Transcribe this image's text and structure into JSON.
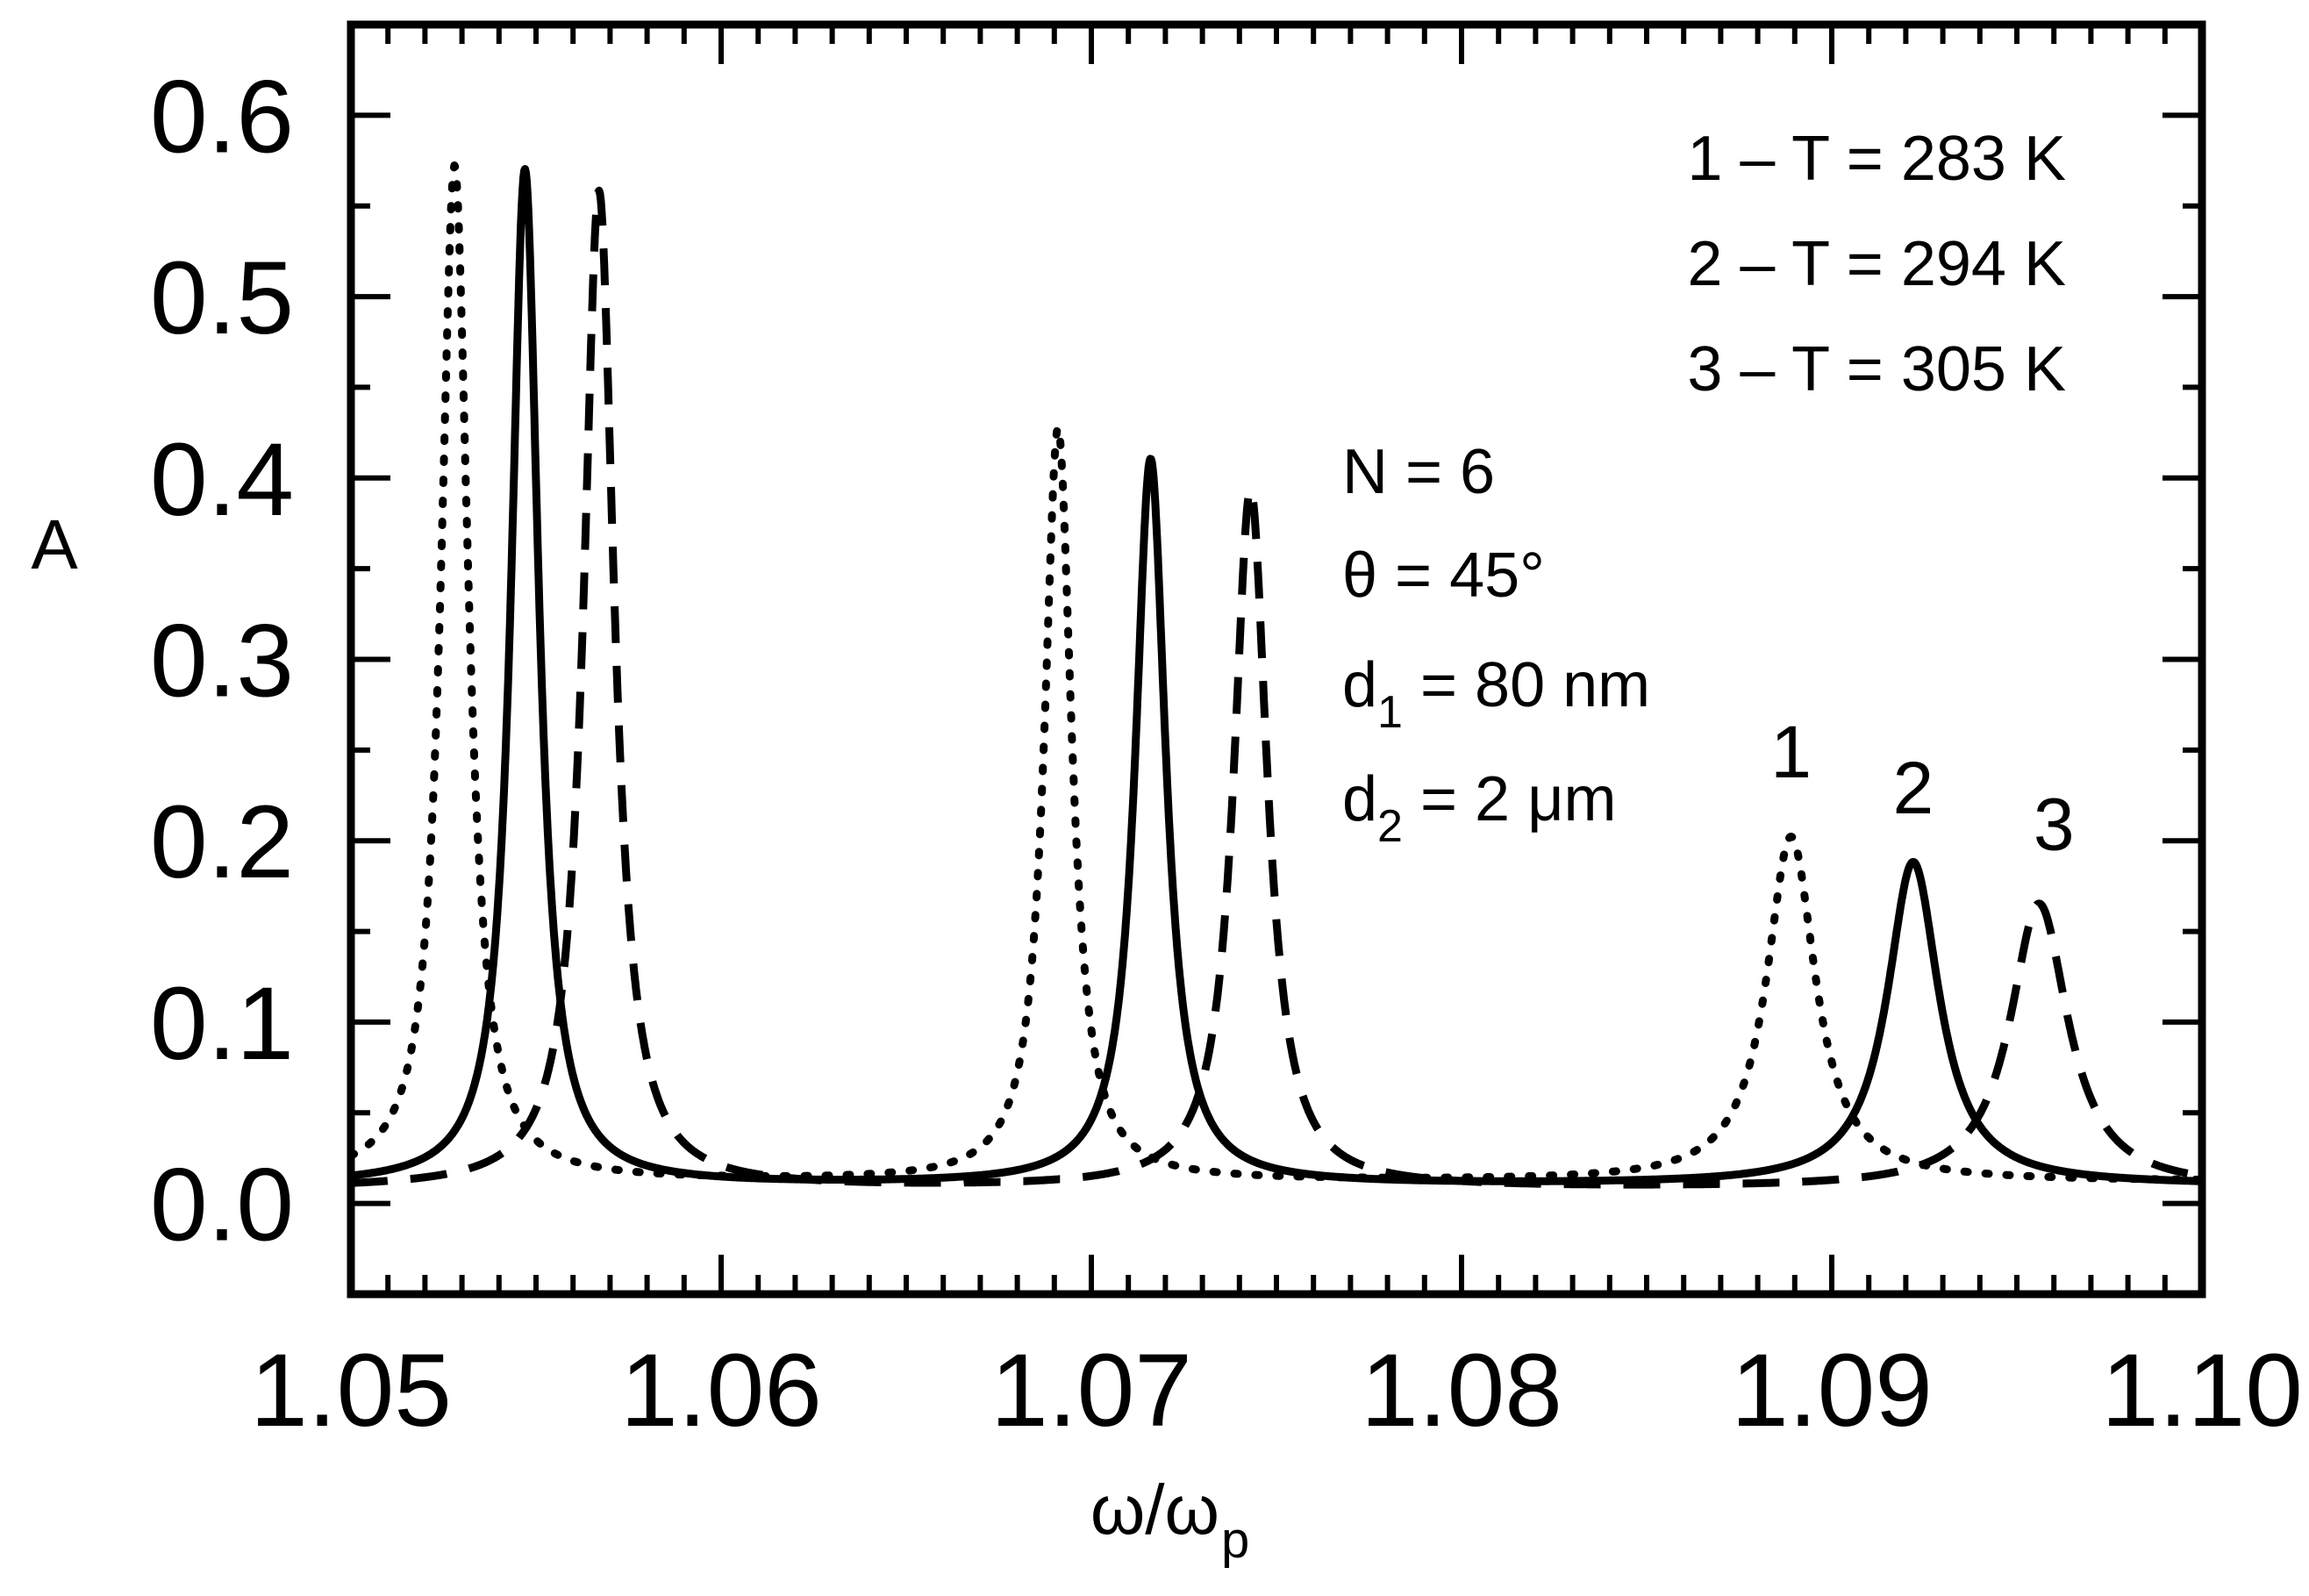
{
  "chart_data": {
    "type": "line",
    "title": "",
    "xlabel": "ω/ω",
    "xlabel_sub": "p",
    "ylabel": "A",
    "xlim": [
      1.05,
      1.1
    ],
    "ylim": [
      -0.05,
      0.65
    ],
    "xticks": [
      "1.05",
      "1.06",
      "1.07",
      "1.08",
      "1.09",
      "1.10"
    ],
    "xtick_values": [
      1.05,
      1.06,
      1.07,
      1.08,
      1.09,
      1.1
    ],
    "yticks": [
      "0.0",
      "0.1",
      "0.2",
      "0.3",
      "0.4",
      "0.5",
      "0.6"
    ],
    "ytick_values": [
      0.0,
      0.1,
      0.2,
      0.3,
      0.4,
      0.5,
      0.6
    ],
    "grid": false,
    "legend": {
      "placement": "top-right",
      "entries": [
        "1 – T = 283 K",
        "2 – T = 294 K",
        "3 – T = 305 K"
      ]
    },
    "parameters": {
      "n": "N = 6",
      "theta": "θ = 45°",
      "d1_left": "d",
      "d1_sub": "1",
      "d1_right": " = 80 nm",
      "d2_left": "d",
      "d2_sub": "2",
      "d2_right": " = 2 μm"
    },
    "curve_labels": [
      {
        "text": "1",
        "x": 1.0889,
        "y": 0.235
      },
      {
        "text": "2",
        "x": 1.0922,
        "y": 0.215
      },
      {
        "text": "3",
        "x": 1.096,
        "y": 0.195
      }
    ],
    "series": [
      {
        "name": "1 – T = 283 K",
        "style": "dotted",
        "baseline": 0.012,
        "peaks": [
          {
            "x0": 1.0528,
            "height": 0.56,
            "width": 0.00045
          },
          {
            "x0": 1.0691,
            "height": 0.415,
            "width": 0.00045
          },
          {
            "x0": 1.0889,
            "height": 0.19,
            "width": 0.0008
          }
        ]
      },
      {
        "name": "2 – T = 294 K",
        "style": "solid",
        "baseline": 0.01,
        "peaks": [
          {
            "x0": 1.0547,
            "height": 0.56,
            "width": 0.00045
          },
          {
            "x0": 1.0716,
            "height": 0.4,
            "width": 0.0005
          },
          {
            "x0": 1.0922,
            "height": 0.178,
            "width": 0.00085
          }
        ]
      },
      {
        "name": "3 – T = 305 K",
        "style": "dashed",
        "baseline": 0.008,
        "peaks": [
          {
            "x0": 1.0567,
            "height": 0.55,
            "width": 0.0005
          },
          {
            "x0": 1.0743,
            "height": 0.385,
            "width": 0.00055
          },
          {
            "x0": 1.0956,
            "height": 0.157,
            "width": 0.00095
          }
        ]
      }
    ]
  }
}
